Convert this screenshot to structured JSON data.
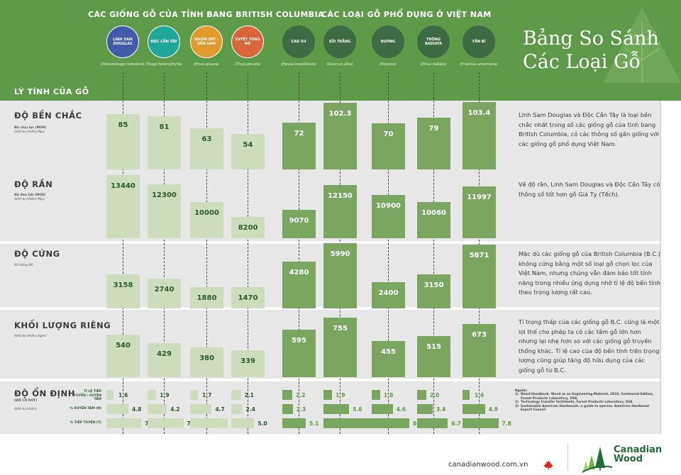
{
  "header": {
    "bc_group_title": "CÁC GIỐNG GỖ CỦA TỈNH BANG BRITISH COLUMBIA",
    "vn_group_title": "CÁC LOẠI GỖ PHỔ DỤNG Ở VIỆT NAM",
    "title_line1": "Bảng So Sánh",
    "title_line2": "Các Loại Gỗ"
  },
  "species": [
    {
      "name": "LINH SAM DOUGLAS",
      "latin": "(Pseudotsuga menziesii)",
      "group": "bc",
      "color": "#3f5ba9"
    },
    {
      "name": "ĐỘC CẦN TÂY",
      "latin": "(Tsuga heterophylla)",
      "group": "bc",
      "color": "#1fa89a"
    },
    {
      "name": "NHÓM SPF - VÂN SAM",
      "latin": "(Picea glauca)",
      "group": "bc",
      "color": "#e39a2d"
    },
    {
      "name": "TUYẾT TÙNG ĐỎ",
      "latin": "(Thuja plicata)",
      "group": "bc",
      "color": "#d9653b"
    },
    {
      "name": "CAO SU",
      "latin": "(Hevea brasiliensis)",
      "group": "vn",
      "color": "#3d6b43"
    },
    {
      "name": "SỒI TRẮNG",
      "latin": "(Quercus alba)",
      "group": "vn",
      "color": "#3d6b43"
    },
    {
      "name": "DƯƠNG",
      "latin": "(Populus)",
      "group": "vn",
      "color": "#3d6b43"
    },
    {
      "name": "THÔNG RADIATA",
      "latin": "(Pinus radiata)",
      "group": "vn",
      "color": "#3d6b43"
    },
    {
      "name": "TẦN BÌ",
      "latin": "(Fraxinus americana)",
      "group": "vn",
      "color": "#3d6b43"
    }
  ],
  "properties_label": "LÝ TÍNH CỦA GỖ",
  "chart_data": {
    "type": "bar",
    "title": "Bảng So Sánh Các Loại Gỗ",
    "categories": [
      "Linh Sam Douglas",
      "Độc Cần Tây",
      "Nhóm SPF - Vân Sam",
      "Tuyết Tùng Đỏ",
      "Cao Su",
      "Sồi Trắng",
      "Dương",
      "Thông Radiata",
      "Tần Bì"
    ],
    "groups": [
      "British Columbia",
      "British Columbia",
      "British Columbia",
      "British Columbia",
      "Việt Nam",
      "Việt Nam",
      "Việt Nam",
      "Việt Nam",
      "Việt Nam"
    ],
    "series": [
      {
        "name": "ĐỘ BỀN CHẮC",
        "sub1": "Độ chịu lực (MOR)",
        "sub2": "(khô tự nhiên) Mpa",
        "values": [
          85,
          81,
          63,
          54,
          72,
          102.3,
          70,
          79,
          103.4
        ],
        "labels": [
          "85",
          "81",
          "63",
          "54",
          "72",
          "102.3",
          "70",
          "79",
          "103.4"
        ],
        "max": 104
      },
      {
        "name": "ĐỘ RẮN",
        "sub1": "Độ đàn hồi (MOE)",
        "sub2": "(khô tự nhiên) Mpa",
        "values": [
          13440,
          12300,
          10000,
          8200,
          9070,
          12150,
          10900,
          10060,
          11997
        ],
        "labels": [
          "13440",
          "12300",
          "10000",
          "8200",
          "9070",
          "12150",
          "10900",
          "10060",
          "11997"
        ],
        "min": 5500,
        "max": 13500
      },
      {
        "name": "ĐỘ CỨNG",
        "sub1": "",
        "sub2": "Xê hông (N)",
        "values": [
          3158,
          2740,
          1880,
          1470,
          4280,
          5990,
          2400,
          3150,
          5871
        ],
        "labels": [
          "3158",
          "2740",
          "1880",
          "1470",
          "4280",
          "5990",
          "2400",
          "3150",
          "5871"
        ],
        "max": 6000
      },
      {
        "name": "KHỐI LƯỢNG RIÊNG",
        "sub1": "",
        "sub2": "(khô tự nhiên) kg/m³",
        "values": [
          540,
          429,
          380,
          339,
          595,
          755,
          455,
          515,
          673
        ],
        "labels": [
          "540",
          "429",
          "380",
          "339",
          "595",
          "755",
          "455",
          "515",
          "673"
        ],
        "max": 760
      }
    ],
    "stability": {
      "name": "ĐỘ ỔN ĐỊNH",
      "sub1": "(ĐỘ CO RÚT)",
      "sub2": "(khô tự nhiên)",
      "rows": [
        {
          "label": "TỈ LỆ TIẾP TUYẾN / XUYÊN TÂM",
          "values": [
            1.6,
            1.9,
            1.7,
            2.1,
            2.2,
            1.9,
            1.8,
            2.0,
            1.6
          ],
          "labels": [
            "1.6",
            "1.9",
            "1.7",
            "2.1",
            "2.2",
            "1.9",
            "1.8",
            "2.0",
            "1.6"
          ]
        },
        {
          "label": "% XUYÊN TÂM (R)",
          "values": [
            4.8,
            4.2,
            4.7,
            2.4,
            2.3,
            5.6,
            4.6,
            3.4,
            4.9
          ],
          "labels": [
            "4.8",
            "4.2",
            "4.7",
            "2.4",
            "2.3",
            "5.6",
            "4.6",
            "3.4",
            "4.9"
          ]
        },
        {
          "label": "% TIẾP TUYẾN (T)",
          "values": [
            7.6,
            7.8,
            8.2,
            5.0,
            5.1,
            10.5,
            8.2,
            6.7,
            7.8
          ],
          "labels": [
            "7.6",
            "7.8",
            "8.2",
            "5.0",
            "5.1",
            "10.5",
            "8.2",
            "6.7",
            "7.8"
          ]
        }
      ],
      "max": 10.5
    }
  },
  "notes": [
    "Linh Sam Douglas và Độc Cần Tây là loại bền chắc nhất trong số các giống gỗ của tỉnh bang British Columbia, có  các thông số gần giống với các giống gỗ phổ dụng Việt Nam.",
    "Về độ rắn, Linh Sam Douglas và Độc Cần Tây có thông số tốt hơn gỗ Giá Tỵ (Tếch).",
    "Mặc dù các giống gỗ của British Columbia (B.C.) không cứng bằng một số loại gỗ chọn lọc của Việt Nam, nhưng chúng vẫn đảm bảo tốt tính năng trong nhiều ứng dụng nhờ tỉ lệ độ bền tính theo trọng lượng rất cao.",
    "Tỉ trọng thấp của các giống gỗ B.C. cũng là một lợi thế  cho phép ta có các tấm gỗ lớn hơn nhưng lại  nhẹ hơn so với các giống gỗ truyền thống khác. Tỉ lệ cao của  độ bền tính trên trọng lượng cũng giúp tăng độ hữu dụng của các giống gỗ từ B.C."
  ],
  "sources": {
    "heading": "Nguồn:",
    "items": [
      {
        "num": "1)",
        "text": "Wood Handbook- Wood as an Engineering Material, 2010, Centennial Edition, Forest Products  Laboratory, USA."
      },
      {
        "num": "2)",
        "text": "Technology transfer factsheets, Forest Products Laboratory, USA"
      },
      {
        "num": "3)",
        "text": "Sustainable American Hardwoods: a guide to species. American Hardwood Export Council"
      }
    ]
  },
  "footer": {
    "url": "canadianwood.com.vn",
    "brand_line1": "Canadian",
    "brand_line2": "Wood"
  },
  "colors": {
    "header_green": "#5e9b48",
    "bc_bar": "#cddcbc",
    "vn_bar": "#7aa660",
    "panel_bg": "#e7e7e8",
    "brand_green": "#236b3a"
  }
}
